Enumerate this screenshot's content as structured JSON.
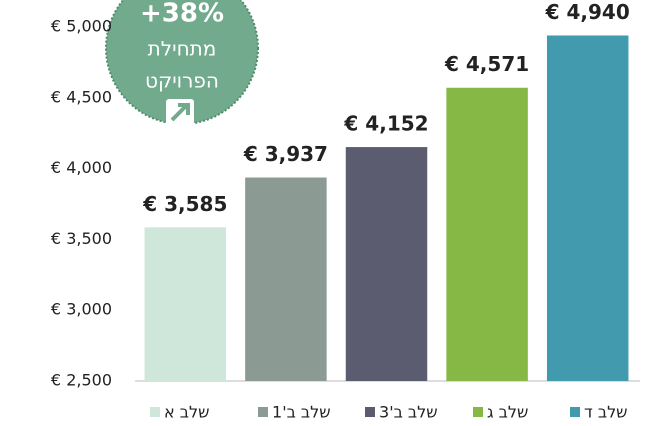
{
  "chart_data": {
    "type": "bar",
    "categories": [
      "שלב א",
      "שלב ב'1",
      "שלב ב'3",
      "שלב ג",
      "שלב ד"
    ],
    "values": [
      3585,
      3937,
      4152,
      4571,
      4940
    ],
    "value_labels": [
      "€ 3,585",
      "€ 3,937",
      "€ 4,152",
      "€ 4,571",
      "€ 4,940"
    ],
    "colors": [
      "#cfe6da",
      "#8b9a93",
      "#5b5c6f",
      "#86b846",
      "#429aae"
    ],
    "ylim": [
      2500,
      5000
    ],
    "yticks": [
      {
        "value": 2500,
        "label": "€ 2,500"
      },
      {
        "value": 3000,
        "label": "€ 3,000"
      },
      {
        "value": 3500,
        "label": "€ 3,500"
      },
      {
        "value": 4000,
        "label": "€ 4,000"
      },
      {
        "value": 4500,
        "label": "€ 4,500"
      },
      {
        "value": 5000,
        "label": "€ 5,000"
      }
    ],
    "grid": false,
    "annotations": [
      "+38%",
      "מתחילת",
      "הפרויקט"
    ]
  }
}
